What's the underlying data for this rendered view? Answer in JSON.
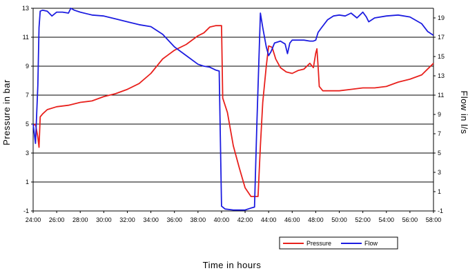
{
  "chart_data": {
    "type": "line",
    "xlabel": "Time in hours",
    "ylabel_left": "Pressure in  bar",
    "ylabel_right": "Flow in l/s",
    "x_ticks": [
      "24:00",
      "26:00",
      "28:00",
      "30:00",
      "32:00",
      "34:00",
      "36:00",
      "38:00",
      "40:00",
      "42:00",
      "44:00",
      "46:00",
      "48:00",
      "50:00",
      "52:00",
      "54:00",
      "56:00",
      "58:00"
    ],
    "y_left_ticks": [
      "13",
      "11",
      "9",
      "7",
      "5",
      "3",
      "1",
      "-1"
    ],
    "y_right_ticks": [
      "19",
      "17",
      "15",
      "13",
      "11",
      "9",
      "7",
      "5",
      "3",
      "1",
      "-1"
    ],
    "xlim": [
      24,
      58
    ],
    "ylim_left": [
      -1,
      13
    ],
    "ylim_right": [
      -1,
      20
    ],
    "grid": "horizontal",
    "legend_position": "bottom-right",
    "series": [
      {
        "name": "Pressure",
        "axis": "left",
        "color": "#e8201c",
        "x": [
          24.0,
          24.2,
          24.4,
          24.5,
          24.6,
          24.8,
          25.2,
          26.0,
          27.0,
          28.0,
          29.0,
          30.0,
          31.0,
          32.0,
          33.0,
          34.0,
          35.0,
          35.5,
          36.0,
          37.0,
          38.0,
          38.5,
          39.0,
          39.5,
          39.9,
          40.0,
          40.1,
          40.5,
          41.0,
          41.5,
          42.0,
          42.5,
          42.8,
          43.0,
          43.1,
          43.3,
          43.5,
          43.8,
          44.0,
          44.3,
          44.6,
          45.0,
          45.5,
          46.0,
          46.5,
          47.0,
          47.5,
          47.8,
          48.0,
          48.1,
          48.2,
          48.3,
          48.6,
          49.0,
          50.0,
          51.0,
          52.0,
          53.0,
          54.0,
          55.0,
          56.0,
          57.0,
          57.5,
          58.0
        ],
        "y": [
          4.9,
          5.0,
          4.1,
          3.4,
          5.5,
          5.7,
          6.0,
          6.2,
          6.3,
          6.5,
          6.6,
          6.9,
          7.1,
          7.4,
          7.8,
          8.5,
          9.5,
          9.8,
          10.1,
          10.5,
          11.1,
          11.3,
          11.7,
          11.8,
          11.8,
          11.8,
          6.8,
          5.8,
          3.5,
          2.0,
          0.6,
          0.0,
          0.0,
          0.0,
          0.0,
          3.5,
          6.5,
          9.0,
          10.4,
          10.3,
          9.5,
          8.9,
          8.6,
          8.5,
          8.7,
          8.8,
          9.2,
          8.9,
          9.9,
          10.2,
          9.0,
          7.6,
          7.3,
          7.3,
          7.3,
          7.4,
          7.5,
          7.5,
          7.6,
          7.9,
          8.1,
          8.4,
          8.8,
          9.2
        ]
      },
      {
        "name": "Flow",
        "axis": "right",
        "color": "#1c1ce0",
        "x": [
          24.0,
          24.2,
          24.4,
          24.5,
          24.6,
          24.8,
          25.2,
          25.6,
          26.0,
          26.5,
          27.0,
          27.2,
          27.5,
          28.0,
          29.0,
          30.0,
          31.0,
          32.0,
          33.0,
          34.0,
          35.0,
          36.0,
          37.0,
          38.0,
          38.5,
          39.0,
          39.5,
          39.8,
          40.0,
          40.3,
          41.0,
          41.5,
          42.0,
          42.5,
          42.8,
          43.0,
          43.3,
          43.5,
          43.8,
          44.0,
          44.2,
          44.5,
          45.0,
          45.4,
          45.6,
          45.8,
          46.0,
          46.5,
          47.0,
          47.5,
          47.8,
          48.0,
          48.2,
          48.5,
          49.0,
          49.5,
          50.0,
          50.5,
          51.0,
          51.5,
          52.0,
          52.3,
          52.5,
          53.0,
          54.0,
          55.0,
          56.0,
          57.0,
          57.5,
          58.0
        ],
        "y": [
          8.0,
          6.0,
          12.0,
          18.0,
          19.7,
          19.8,
          19.7,
          19.2,
          19.6,
          19.6,
          19.5,
          20.0,
          19.8,
          19.6,
          19.3,
          19.2,
          18.9,
          18.6,
          18.3,
          18.1,
          17.3,
          16.0,
          15.1,
          14.2,
          14.0,
          13.9,
          13.6,
          13.5,
          -0.5,
          -0.8,
          -0.9,
          -0.9,
          -0.9,
          -0.7,
          -0.6,
          8.0,
          19.5,
          18.0,
          16.0,
          15.1,
          15.5,
          16.4,
          16.6,
          16.3,
          15.3,
          16.4,
          16.7,
          16.7,
          16.7,
          16.6,
          16.6,
          16.7,
          17.5,
          18.0,
          18.8,
          19.2,
          19.3,
          19.2,
          19.5,
          19.0,
          19.6,
          19.1,
          18.6,
          19.0,
          19.2,
          19.3,
          19.1,
          18.4,
          17.6,
          17.2
        ]
      }
    ]
  }
}
